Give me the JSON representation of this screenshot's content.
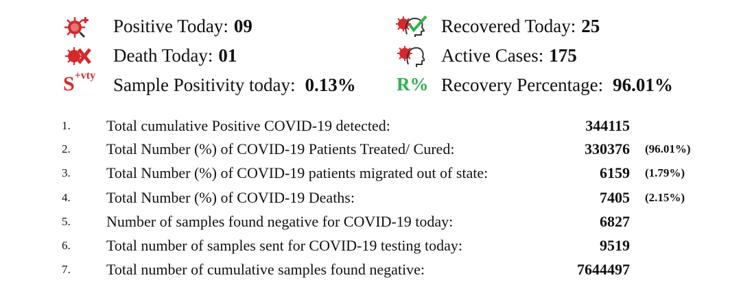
{
  "stats": {
    "positive_today": {
      "label": "Positive Today:",
      "value": "09",
      "icon": "virus-plus-icon"
    },
    "recovered_today": {
      "label": "Recovered Today:",
      "value": "25",
      "icon": "recovered-head-check-icon"
    },
    "death_today": {
      "label": "Death Today:",
      "value": "01",
      "icon": "virus-cross-icon"
    },
    "active_cases": {
      "label": "Active Cases:",
      "value": "175",
      "icon": "virus-head-icon"
    },
    "sample_positivity": {
      "label": "Sample Positivity today:",
      "value": "0.13%",
      "symbol_main": "S",
      "symbol_sup": "+vty"
    },
    "recovery_percentage": {
      "label": "Recovery Percentage:",
      "value": "96.01%",
      "symbol": "R%"
    }
  },
  "colors": {
    "virus_red": "#d7282b",
    "check_green": "#2eb24b"
  },
  "rows": [
    {
      "num": "1.",
      "text": "Total cumulative Positive COVID-19 detected:",
      "value": "344115",
      "pct": ""
    },
    {
      "num": "2.",
      "text": "Total Number (%) of COVID-19 Patients Treated/ Cured:",
      "value": "330376",
      "pct": "(96.01%)"
    },
    {
      "num": "3.",
      "text": "Total Number (%) of COVID-19 patients migrated out of state:",
      "value": "6159",
      "pct": "(1.79%)"
    },
    {
      "num": "4.",
      "text": "Total Number (%) of COVID-19 Deaths:",
      "value": "7405",
      "pct": "(2.15%)"
    },
    {
      "num": "5.",
      "text": "Number of samples found negative for COVID-19 today:",
      "value": "6827",
      "pct": ""
    },
    {
      "num": "6.",
      "text": "Total number of samples sent for COVID-19 testing today:",
      "value": "9519",
      "pct": ""
    },
    {
      "num": "7.",
      "text": "Total number of cumulative samples found negative:",
      "value": "7644497",
      "pct": ""
    }
  ]
}
